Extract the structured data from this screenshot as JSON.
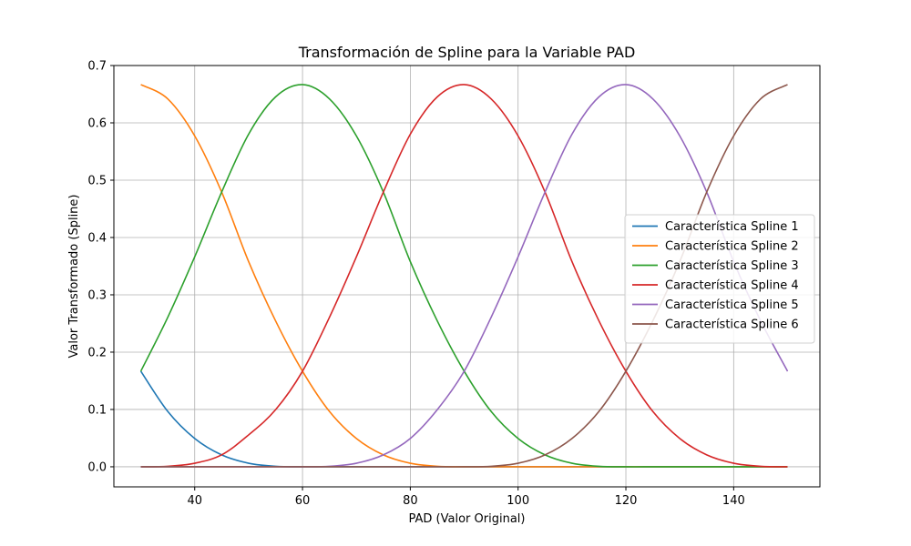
{
  "chart_data": {
    "type": "line",
    "title": "Transformación de Spline para la Variable PAD",
    "xlabel": "PAD (Valor Original)",
    "ylabel": "Valor Transformado (Spline)",
    "xlim": [
      25,
      156
    ],
    "ylim": [
      -0.035,
      0.7
    ],
    "xticks": [
      40,
      60,
      80,
      100,
      120,
      140
    ],
    "yticks": [
      0.0,
      0.1,
      0.2,
      0.3,
      0.4,
      0.5,
      0.6,
      0.7
    ],
    "xtick_labels": [
      "40",
      "60",
      "80",
      "100",
      "120",
      "140"
    ],
    "ytick_labels": [
      "0.0",
      "0.1",
      "0.2",
      "0.3",
      "0.4",
      "0.5",
      "0.6",
      "0.7"
    ],
    "grid": true,
    "legend": "center-right",
    "x": [
      30,
      35,
      40,
      45,
      50,
      55,
      60,
      65,
      70,
      75,
      80,
      85,
      90,
      95,
      100,
      105,
      110,
      115,
      120,
      125,
      130,
      135,
      140,
      145,
      150
    ],
    "series": [
      {
        "name": "Característica Spline 1",
        "color": "#1f77b4",
        "values": [
          0.1667,
          0.0965,
          0.0494,
          0.0208,
          0.0062,
          0.0008,
          0,
          0,
          0,
          0,
          0,
          0,
          0,
          0,
          0,
          0,
          0,
          0,
          0,
          0,
          0,
          0,
          0,
          0,
          0
        ]
      },
      {
        "name": "Característica Spline 2",
        "color": "#ff7f0e",
        "values": [
          0.6667,
          0.6418,
          0.5772,
          0.4792,
          0.358,
          0.2546,
          0.1667,
          0.0965,
          0.0494,
          0.0208,
          0.0062,
          0.0008,
          0,
          0,
          0,
          0,
          0,
          0,
          0,
          0,
          0,
          0,
          0,
          0,
          0
        ]
      },
      {
        "name": "Característica Spline 3",
        "color": "#2ca02c",
        "values": [
          0.1667,
          0.2608,
          0.3663,
          0.4792,
          0.5802,
          0.6452,
          0.6667,
          0.6418,
          0.5772,
          0.4792,
          0.358,
          0.2546,
          0.1667,
          0.0965,
          0.0494,
          0.0208,
          0.0062,
          0.0008,
          0,
          0,
          0,
          0,
          0,
          0,
          0
        ]
      },
      {
        "name": "Característica Spline 4",
        "color": "#d62728",
        "values": [
          0,
          0.0008,
          0.0062,
          0.0208,
          0.0556,
          0.0995,
          0.1667,
          0.2608,
          0.3663,
          0.4792,
          0.5802,
          0.6452,
          0.6667,
          0.6418,
          0.5772,
          0.4792,
          0.358,
          0.2546,
          0.1667,
          0.0965,
          0.0494,
          0.0208,
          0.0062,
          0.0008,
          0
        ]
      },
      {
        "name": "Característica Spline 5",
        "color": "#9467bd",
        "values": [
          0,
          0,
          0,
          0,
          0,
          0,
          0,
          0.0008,
          0.0062,
          0.0208,
          0.0494,
          0.0995,
          0.1667,
          0.2608,
          0.3663,
          0.4792,
          0.5802,
          0.6452,
          0.6667,
          0.6418,
          0.5772,
          0.4792,
          0.358,
          0.2546,
          0.1667
        ]
      },
      {
        "name": "Característica Spline 6",
        "color": "#8c564b",
        "values": [
          0,
          0,
          0,
          0,
          0,
          0,
          0,
          0,
          0,
          0,
          0,
          0,
          0,
          0.0008,
          0.0062,
          0.0208,
          0.0494,
          0.0965,
          0.1667,
          0.2546,
          0.358,
          0.4792,
          0.5772,
          0.6418,
          0.6667
        ]
      }
    ]
  }
}
